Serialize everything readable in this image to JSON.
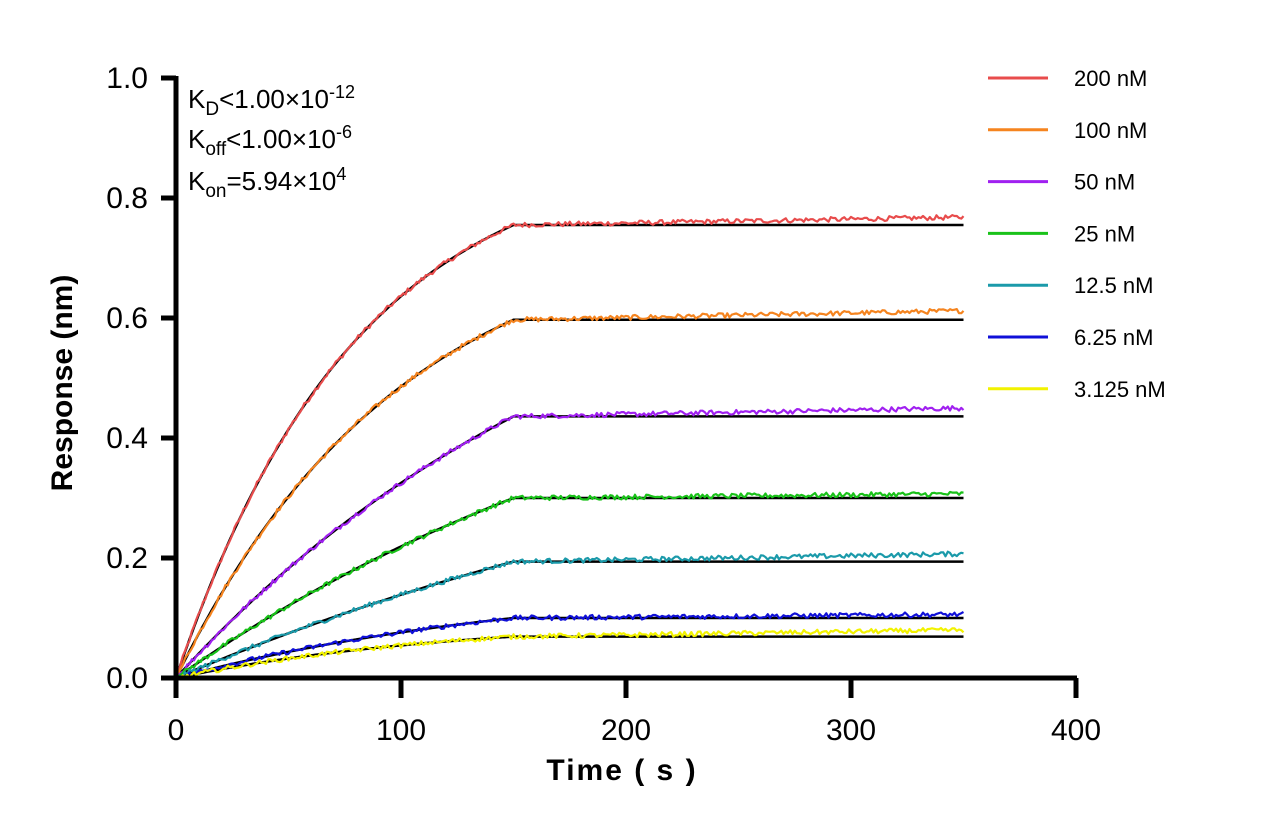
{
  "chart_data": {
    "type": "line",
    "xlabel": "Time ( s )",
    "ylabel": "Response (nm)",
    "xlim": [
      0,
      400
    ],
    "ylim": [
      0,
      1.0
    ],
    "xticks": [
      "0",
      "100",
      "200",
      "300",
      "400"
    ],
    "yticks": [
      "0.0",
      "0.2",
      "0.4",
      "0.6",
      "0.8",
      "1.0"
    ],
    "association_end": 150,
    "time_end": 350,
    "legend_position": "right",
    "grid": false,
    "annotations": {
      "kd": {
        "main": "K",
        "sub": "D",
        "rel": "<1.00×10",
        "exp": "-12"
      },
      "koff": {
        "main": "K",
        "sub": "off",
        "rel": "<1.00×10",
        "exp": "-6"
      },
      "kon": {
        "main": "K",
        "sub": "on",
        "rel": "=5.94×10",
        "exp": "4"
      }
    },
    "fit_color": "#000000",
    "series": [
      {
        "name": "200 nM",
        "color": "#e84c4c",
        "plateau": 0.755,
        "final": 0.768,
        "k_obs": 0.0125,
        "noise": 0.004
      },
      {
        "name": "100 nM",
        "color": "#f5841f",
        "plateau": 0.597,
        "final": 0.612,
        "k_obs": 0.01,
        "noise": 0.004
      },
      {
        "name": "50 nM",
        "color": "#a020f0",
        "plateau": 0.436,
        "final": 0.45,
        "k_obs": 0.005,
        "noise": 0.004
      },
      {
        "name": "25 nM",
        "color": "#19c219",
        "plateau": 0.3,
        "final": 0.307,
        "k_obs": 0.004,
        "noise": 0.004
      },
      {
        "name": "12.5 nM",
        "color": "#1b9aaa",
        "plateau": 0.194,
        "final": 0.207,
        "k_obs": 0.003,
        "noise": 0.004
      },
      {
        "name": "6.25 nM",
        "color": "#1010d8",
        "plateau": 0.1,
        "final": 0.106,
        "k_obs": 0.006,
        "noise": 0.004
      },
      {
        "name": "3.125 nM",
        "color": "#f2f200",
        "plateau": 0.069,
        "final": 0.08,
        "k_obs": 0.008,
        "noise": 0.004
      }
    ]
  }
}
